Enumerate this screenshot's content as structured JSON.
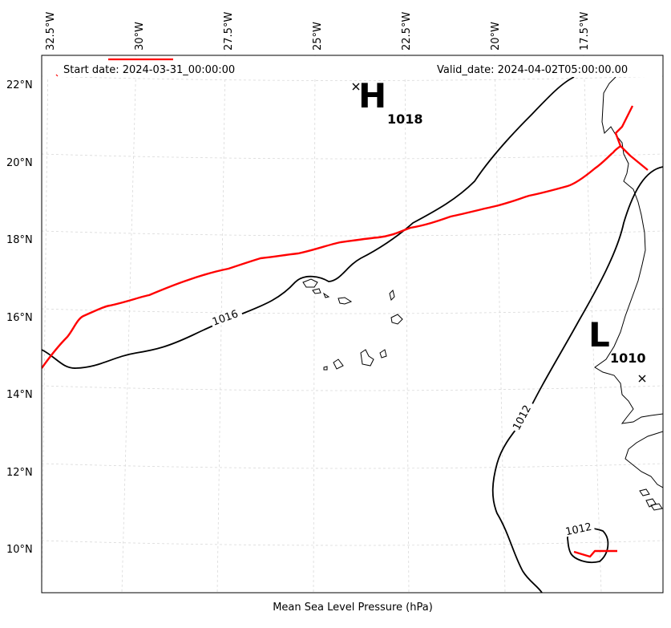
{
  "header": {
    "start_date": "Start date: 2024-03-31_00:00:00",
    "valid_date": "Valid_date: 2024-04-02T05:00:00.00"
  },
  "footer": {
    "label": "Mean Sea Level Pressure (hPa)"
  },
  "axes": {
    "lon_ticks": [
      "32.5°W",
      "30°W",
      "27.5°W",
      "25°W",
      "22.5°W",
      "20°W",
      "17.5°W"
    ],
    "lat_ticks": [
      "22°N",
      "20°N",
      "18°N",
      "16°N",
      "14°N",
      "12°N",
      "10°N"
    ]
  },
  "centers": {
    "high": {
      "symbol": "H",
      "value": "1018"
    },
    "low": {
      "symbol": "L",
      "value": "1010"
    }
  },
  "isobar_labels": {
    "a": "1016",
    "b": "1012",
    "c": "1012"
  },
  "colors": {
    "front": "#ff0000",
    "isobar": "#000000",
    "grid": "#d9d9d9"
  }
}
